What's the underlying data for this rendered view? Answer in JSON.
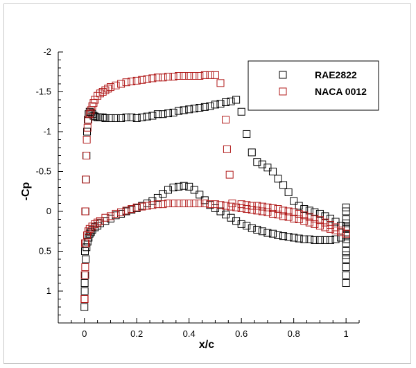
{
  "chart_data": {
    "type": "scatter",
    "title": "",
    "xlabel": "x/c",
    "ylabel": "-Cp",
    "xlim": [
      -0.1,
      1.05
    ],
    "ylim": [
      -2.0,
      1.4
    ],
    "y_inverted": true,
    "x_ticks": [
      0,
      0.2,
      0.4,
      0.6,
      0.8,
      1
    ],
    "x_tick_labels": [
      "0",
      "0.2",
      "0.4",
      "0.6",
      "0.8",
      "1"
    ],
    "y_ticks": [
      -2,
      -1.5,
      -1,
      -0.5,
      0,
      0.5,
      1
    ],
    "y_tick_labels": [
      "-2",
      "-1.5",
      "-1",
      "-0.5",
      "0",
      "0.5",
      "1"
    ],
    "legend_position": "top-right",
    "marker": "square",
    "series": [
      {
        "name": "RAE2822",
        "color": "#000000",
        "x": [
          0.0,
          0.001,
          0.002,
          0.004,
          0.006,
          0.008,
          0.01,
          0.013,
          0.016,
          0.02,
          0.025,
          0.03,
          0.035,
          0.04,
          0.05,
          0.06,
          0.07,
          0.08,
          0.1,
          0.12,
          0.14,
          0.16,
          0.18,
          0.2,
          0.22,
          0.24,
          0.26,
          0.28,
          0.3,
          0.32,
          0.34,
          0.36,
          0.38,
          0.4,
          0.42,
          0.44,
          0.46,
          0.48,
          0.5,
          0.52,
          0.54,
          0.56,
          0.58,
          0.6,
          0.62,
          0.64,
          0.66,
          0.68,
          0.7,
          0.72,
          0.74,
          0.76,
          0.78,
          0.8,
          0.82,
          0.84,
          0.86,
          0.88,
          0.9,
          0.92,
          0.94,
          0.96,
          0.98,
          1.0,
          0.001,
          0.003,
          0.005,
          0.008,
          0.012,
          0.016,
          0.02,
          0.025,
          0.03,
          0.04,
          0.05,
          0.06,
          0.08,
          0.1,
          0.12,
          0.14,
          0.16,
          0.18,
          0.2,
          0.22,
          0.24,
          0.26,
          0.28,
          0.3,
          0.32,
          0.34,
          0.36,
          0.38,
          0.4,
          0.42,
          0.44,
          0.46,
          0.48,
          0.5,
          0.52,
          0.54,
          0.56,
          0.58,
          0.6,
          0.62,
          0.64,
          0.66,
          0.68,
          0.7,
          0.72,
          0.74,
          0.76,
          0.78,
          0.8,
          0.82,
          0.84,
          0.86,
          0.88,
          0.9,
          0.92,
          0.94,
          0.96,
          0.98,
          1.0,
          1.0,
          1.0,
          1.0,
          1.0,
          1.0,
          1.0,
          1.0,
          1.0,
          1.0,
          1.0,
          1.0,
          1.0,
          1.0,
          1.0
        ],
        "y": [
          1.2,
          0.9,
          0.5,
          0.0,
          -0.4,
          -0.7,
          -1.0,
          -1.15,
          -1.22,
          -1.25,
          -1.24,
          -1.22,
          -1.2,
          -1.19,
          -1.18,
          -1.18,
          -1.18,
          -1.17,
          -1.17,
          -1.17,
          -1.17,
          -1.18,
          -1.18,
          -1.17,
          -1.18,
          -1.19,
          -1.2,
          -1.22,
          -1.22,
          -1.23,
          -1.24,
          -1.26,
          -1.27,
          -1.28,
          -1.29,
          -1.3,
          -1.31,
          -1.32,
          -1.34,
          -1.35,
          -1.37,
          -1.38,
          -1.4,
          -1.25,
          -0.97,
          -0.74,
          -0.62,
          -0.59,
          -0.55,
          -0.5,
          -0.41,
          -0.33,
          -0.24,
          -0.13,
          -0.07,
          -0.03,
          -0.01,
          0.01,
          0.03,
          0.06,
          0.09,
          0.13,
          0.18,
          0.22,
          1.0,
          0.8,
          0.6,
          0.45,
          0.38,
          0.33,
          0.28,
          0.26,
          0.23,
          0.2,
          0.18,
          0.15,
          0.12,
          0.09,
          0.05,
          0.03,
          0.0,
          -0.02,
          -0.04,
          -0.07,
          -0.1,
          -0.13,
          -0.17,
          -0.22,
          -0.27,
          -0.3,
          -0.31,
          -0.32,
          -0.31,
          -0.27,
          -0.21,
          -0.14,
          -0.08,
          -0.04,
          -0.0,
          0.04,
          0.08,
          0.12,
          0.16,
          0.18,
          0.21,
          0.23,
          0.25,
          0.27,
          0.28,
          0.3,
          0.31,
          0.32,
          0.33,
          0.34,
          0.35,
          0.35,
          0.36,
          0.36,
          0.36,
          0.36,
          0.35,
          0.33,
          0.3,
          0.0,
          0.1,
          0.2,
          0.3,
          0.4,
          0.5,
          0.6,
          0.7,
          0.8,
          0.9,
          -0.05,
          0.15,
          0.35,
          0.55
        ]
      },
      {
        "name": "NACA 0012",
        "color": "#b01818",
        "x": [
          0.0,
          0.001,
          0.002,
          0.003,
          0.005,
          0.007,
          0.009,
          0.012,
          0.015,
          0.02,
          0.025,
          0.03,
          0.035,
          0.04,
          0.05,
          0.06,
          0.07,
          0.08,
          0.09,
          0.1,
          0.12,
          0.14,
          0.16,
          0.18,
          0.2,
          0.22,
          0.24,
          0.26,
          0.28,
          0.3,
          0.32,
          0.34,
          0.36,
          0.38,
          0.4,
          0.42,
          0.44,
          0.46,
          0.48,
          0.5,
          0.52,
          0.54,
          0.545,
          0.555,
          0.565,
          0.6,
          0.62,
          0.64,
          0.66,
          0.68,
          0.7,
          0.72,
          0.74,
          0.76,
          0.78,
          0.8,
          0.82,
          0.84,
          0.86,
          0.88,
          0.9,
          0.92,
          0.94,
          0.96,
          0.98,
          1.0,
          0.001,
          0.003,
          0.006,
          0.01,
          0.015,
          0.02,
          0.03,
          0.04,
          0.05,
          0.06,
          0.08,
          0.1,
          0.12,
          0.14,
          0.16,
          0.18,
          0.2,
          0.22,
          0.24,
          0.26,
          0.28,
          0.3,
          0.32,
          0.34,
          0.36,
          0.38,
          0.4,
          0.42,
          0.44,
          0.46,
          0.48,
          0.5,
          0.52,
          0.54,
          0.56,
          0.58,
          0.6,
          0.62,
          0.64,
          0.66,
          0.68,
          0.7,
          0.72,
          0.74,
          0.76,
          0.78,
          0.8,
          0.82,
          0.84,
          0.86,
          0.88,
          0.9,
          0.92,
          0.94,
          0.96,
          0.98,
          1.0
        ],
        "y": [
          1.1,
          0.8,
          0.4,
          0.0,
          -0.4,
          -0.7,
          -0.9,
          -1.05,
          -1.15,
          -1.22,
          -1.27,
          -1.32,
          -1.36,
          -1.4,
          -1.45,
          -1.48,
          -1.5,
          -1.52,
          -1.54,
          -1.56,
          -1.58,
          -1.6,
          -1.62,
          -1.63,
          -1.64,
          -1.65,
          -1.66,
          -1.67,
          -1.68,
          -1.68,
          -1.69,
          -1.69,
          -1.7,
          -1.7,
          -1.7,
          -1.7,
          -1.7,
          -1.71,
          -1.71,
          -1.71,
          -1.61,
          -1.15,
          -0.78,
          -0.46,
          -0.1,
          -0.09,
          -0.08,
          -0.07,
          -0.07,
          -0.06,
          -0.05,
          -0.04,
          -0.03,
          -0.01,
          0.0,
          0.01,
          0.03,
          0.05,
          0.07,
          0.09,
          0.11,
          0.14,
          0.17,
          0.2,
          0.24,
          0.28,
          1.1,
          0.7,
          0.4,
          0.3,
          0.25,
          0.22,
          0.19,
          0.16,
          0.14,
          0.12,
          0.08,
          0.06,
          0.03,
          0.01,
          -0.01,
          -0.03,
          -0.05,
          -0.06,
          -0.07,
          -0.08,
          -0.09,
          -0.09,
          -0.1,
          -0.1,
          -0.1,
          -0.1,
          -0.1,
          -0.1,
          -0.1,
          -0.1,
          -0.09,
          -0.09,
          -0.08,
          -0.07,
          -0.06,
          -0.05,
          -0.04,
          -0.03,
          -0.02,
          -0.01,
          0.0,
          0.01,
          0.03,
          0.04,
          0.06,
          0.07,
          0.09,
          0.1,
          0.12,
          0.14,
          0.16,
          0.18,
          0.2,
          0.22,
          0.24,
          0.26,
          0.28
        ]
      }
    ]
  }
}
